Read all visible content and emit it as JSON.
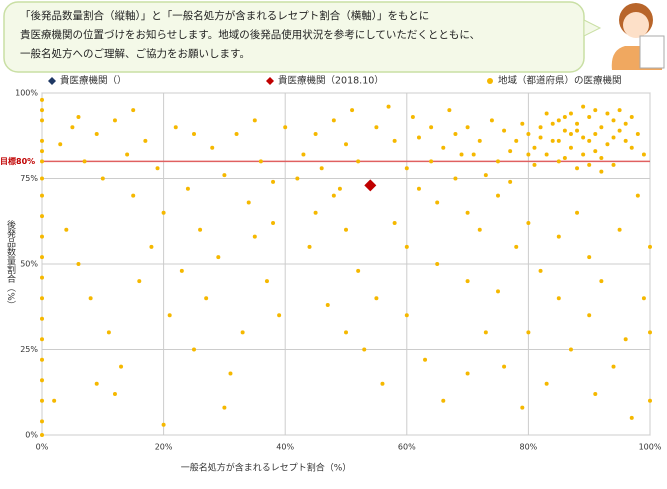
{
  "chart_data": {
    "type": "scatter",
    "annotations": [
      "「後発品数量割合（縦軸）」と「一般名処方が含まれるレセプト割合（横軸）」をもとに",
      "貴医療機関の位置づけをお知らせします。地域の後発品使用状況を参考にしていただくとともに、",
      "一般名処方へのご理解、ご協力をお願いします。"
    ],
    "xlabel": "一般名処方が含まれるレセプト割合（%）",
    "ylabel": "後発品数量割合（%）",
    "xlim": [
      0,
      100
    ],
    "ylim": [
      0,
      100
    ],
    "xticks": [
      {
        "value": 0,
        "label": "0%"
      },
      {
        "value": 20,
        "label": "20%"
      },
      {
        "value": 40,
        "label": "40%"
      },
      {
        "value": 60,
        "label": "60%"
      },
      {
        "value": 80,
        "label": "80%"
      },
      {
        "value": 100,
        "label": "100%"
      }
    ],
    "yticks": [
      {
        "value": 0,
        "label": "0%"
      },
      {
        "value": 25,
        "label": "25%"
      },
      {
        "value": 50,
        "label": "50%"
      },
      {
        "value": 75,
        "label": "75%"
      },
      {
        "value": 100,
        "label": "100%"
      }
    ],
    "grid": true,
    "target": {
      "label": "目標80%",
      "value": 80,
      "color": "#e06060"
    },
    "series": [
      {
        "name": "貴医療機関（）",
        "color": "#1f3864",
        "marker": "diamond",
        "x": [],
        "values": []
      },
      {
        "name": "貴医療機関（2018.10）",
        "color": "#c00000",
        "marker": "diamond",
        "x": [
          54
        ],
        "values": [
          73
        ]
      },
      {
        "name": "地域（都道府県）の医療機関",
        "color": "#f5b800",
        "marker": "circle",
        "x": [
          80,
          82,
          84,
          85,
          86,
          87,
          88,
          89,
          90,
          91,
          92,
          93,
          94,
          95,
          96,
          83,
          85,
          87,
          89,
          91,
          78,
          79,
          81,
          76,
          77,
          92,
          94,
          96,
          97,
          90,
          88,
          86,
          84,
          82,
          80,
          93,
          95,
          89,
          87,
          85,
          91,
          83,
          74,
          72,
          70,
          98,
          99,
          97,
          88,
          90,
          86,
          92,
          94,
          81,
          75,
          71,
          68,
          66,
          64,
          62,
          45,
          48,
          50,
          52,
          55,
          58,
          60,
          62,
          65,
          68,
          70,
          72,
          75,
          78,
          80,
          82,
          85,
          88,
          90,
          92,
          95,
          98,
          99,
          100,
          100,
          96,
          90,
          85,
          80,
          75,
          70,
          65,
          60,
          58,
          55,
          52,
          50,
          48,
          45,
          42,
          44,
          47,
          50,
          53,
          56,
          60,
          63,
          66,
          70,
          73,
          76,
          79,
          83,
          87,
          91,
          94,
          97,
          100,
          40,
          43,
          46,
          49,
          51,
          57,
          61,
          64,
          67,
          69,
          73,
          77,
          3,
          5,
          7,
          9,
          10,
          12,
          14,
          15,
          17,
          19,
          20,
          22,
          24,
          26,
          28,
          30,
          32,
          34,
          36,
          38,
          4,
          6,
          8,
          11,
          13,
          16,
          18,
          21,
          23,
          25,
          27,
          29,
          31,
          33,
          35,
          37,
          39,
          2,
          9,
          12,
          20,
          30,
          38,
          35,
          25,
          15,
          6,
          0,
          0,
          0,
          0,
          0,
          0,
          0,
          0,
          0,
          0,
          0,
          0,
          0,
          0,
          0,
          0,
          0,
          0,
          0,
          0
        ],
        "values": [
          88,
          90,
          86,
          92,
          89,
          84,
          91,
          87,
          93,
          88,
          90,
          85,
          92,
          89,
          86,
          82,
          80,
          94,
          82,
          95,
          86,
          91,
          84,
          89,
          83,
          81,
          87,
          91,
          84,
          86,
          89,
          93,
          91,
          87,
          82,
          94,
          95,
          96,
          88,
          86,
          83,
          94,
          92,
          86,
          90,
          88,
          82,
          93,
          78,
          79,
          81,
          77,
          79,
          79,
          80,
          82,
          88,
          84,
          90,
          87,
          88,
          92,
          85,
          80,
          90,
          86,
          78,
          72,
          68,
          75,
          65,
          60,
          70,
          55,
          62,
          48,
          58,
          65,
          52,
          45,
          60,
          70,
          40,
          55,
          30,
          28,
          35,
          40,
          30,
          42,
          45,
          50,
          55,
          62,
          40,
          48,
          60,
          70,
          65,
          75,
          55,
          38,
          30,
          25,
          15,
          35,
          22,
          10,
          18,
          30,
          20,
          8,
          15,
          25,
          12,
          20,
          5,
          10,
          90,
          82,
          78,
          72,
          95,
          96,
          93,
          80,
          95,
          82,
          76,
          74,
          85,
          90,
          80,
          88,
          75,
          92,
          82,
          70,
          86,
          78,
          65,
          90,
          72,
          60,
          84,
          76,
          88,
          68,
          80,
          74,
          60,
          50,
          40,
          30,
          20,
          45,
          55,
          35,
          48,
          25,
          40,
          52,
          18,
          30,
          58,
          45,
          35,
          10,
          15,
          12,
          3,
          8,
          62,
          92,
          88,
          95,
          93,
          98,
          92,
          86,
          80,
          75,
          70,
          64,
          58,
          52,
          46,
          40,
          34,
          28,
          22,
          16,
          10,
          4,
          0,
          95,
          83
        ]
      }
    ]
  }
}
